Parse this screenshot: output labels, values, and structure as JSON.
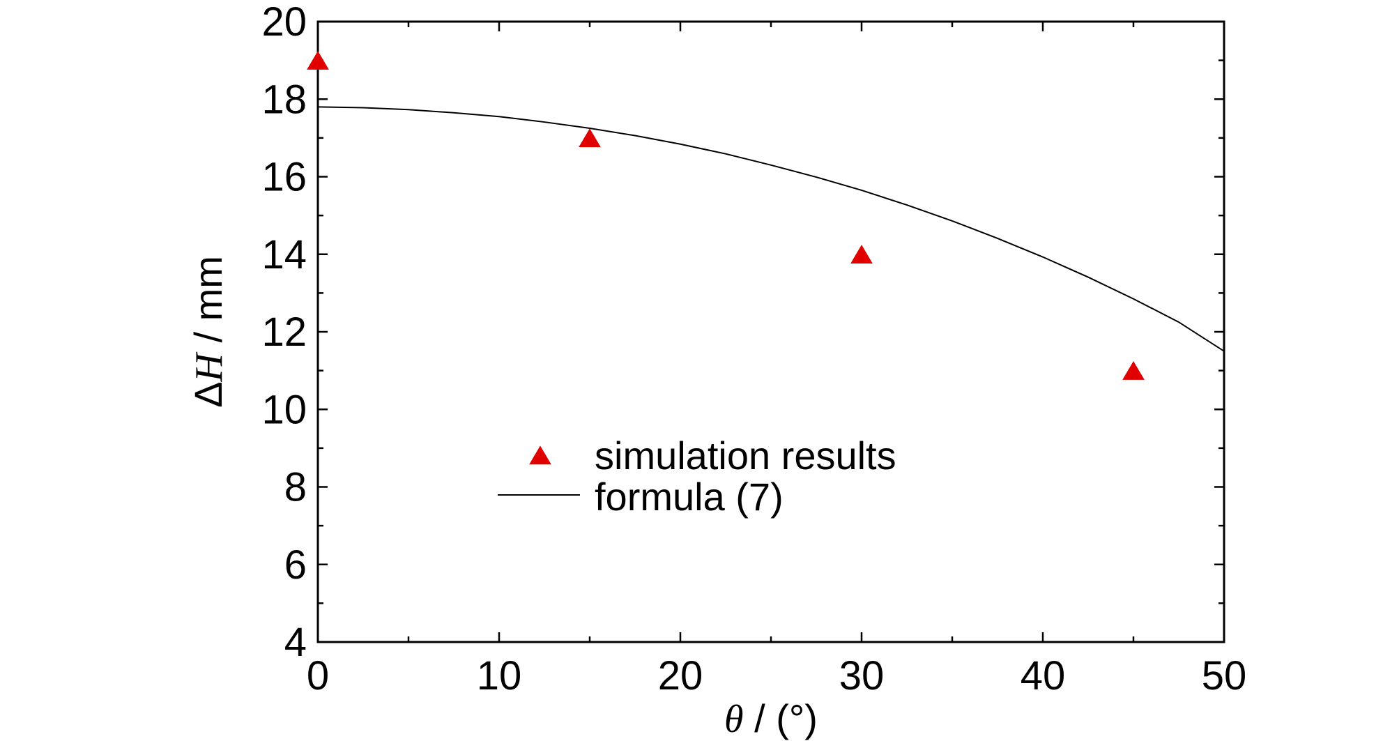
{
  "chart_data": {
    "type": "scatter",
    "xlabel": {
      "symbol": "θ",
      "rest": " / (°)"
    },
    "ylabel": {
      "prefix": "Δ",
      "symbol": "H",
      "rest": " / mm"
    },
    "xlim": [
      0,
      50
    ],
    "ylim": [
      4,
      20
    ],
    "x_ticks": [
      0,
      10,
      20,
      30,
      40,
      50
    ],
    "y_ticks": [
      4,
      6,
      8,
      10,
      12,
      14,
      16,
      18,
      20
    ],
    "x_tick_labels": [
      "0",
      "10",
      "20",
      "30",
      "40",
      "50"
    ],
    "y_tick_labels": [
      "4",
      "6",
      "8",
      "10",
      "12",
      "14",
      "16",
      "18",
      "20"
    ],
    "grid": false,
    "legend_position": "center-left",
    "series": [
      {
        "name": "simulation results",
        "kind": "scatter",
        "marker": "triangle",
        "color": "#e00000",
        "x": [
          0,
          15,
          30,
          45
        ],
        "y": [
          19.0,
          17.0,
          14.0,
          11.0
        ]
      },
      {
        "name": "formula (7)",
        "kind": "line",
        "color": "#000000",
        "x": [
          0,
          2.5,
          5,
          7.5,
          10,
          12.5,
          15,
          17.5,
          20,
          22.5,
          25,
          27.5,
          30,
          32.5,
          35,
          37.5,
          40,
          42.5,
          45,
          47.5,
          50
        ],
        "y": [
          17.8,
          17.78,
          17.73,
          17.65,
          17.55,
          17.41,
          17.25,
          17.06,
          16.84,
          16.59,
          16.3,
          15.99,
          15.65,
          15.27,
          14.86,
          14.41,
          13.93,
          13.41,
          12.85,
          12.25,
          11.5
        ]
      }
    ]
  }
}
